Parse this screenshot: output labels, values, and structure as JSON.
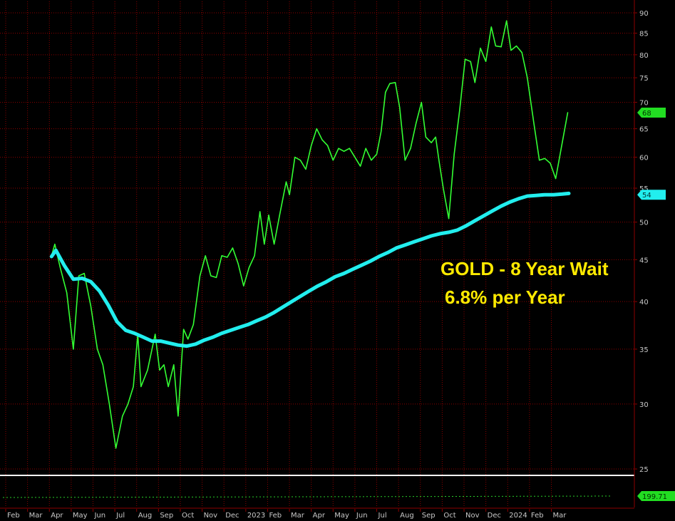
{
  "chart_data": {
    "type": "line",
    "title": "",
    "xlabel": "",
    "ylabel": "",
    "ylim": [
      25,
      92
    ],
    "y_scale": "log",
    "grid": true,
    "colors": {
      "background": "#000000",
      "grid": "#8b0000",
      "price": "#33ff33",
      "average": "#22eeee",
      "annotation": "#ffea00",
      "axis_text": "#c8c8c8"
    },
    "y_ticks": [
      "90",
      "85",
      "80",
      "75",
      "70",
      "65",
      "60",
      "55",
      "50",
      "45",
      "40",
      "35",
      "30",
      "25"
    ],
    "x_ticks": [
      "Feb",
      "Mar",
      "Apr",
      "May",
      "Jun",
      "Jul",
      "Aug",
      "Sep",
      "Oct",
      "Nov",
      "Dec",
      "2023",
      "Feb",
      "Mar",
      "Apr",
      "May",
      "Jun",
      "Jul",
      "Aug",
      "Sep",
      "Oct",
      "Nov",
      "Dec",
      "2024",
      "Feb",
      "Mar"
    ],
    "x_tick_month_index": [
      0,
      1,
      2,
      3,
      4,
      5,
      6,
      7,
      8,
      9,
      10,
      11,
      12,
      13,
      14,
      15,
      16,
      17,
      18,
      19,
      20,
      21,
      22,
      23,
      24,
      25
    ],
    "series": [
      {
        "role": "price",
        "values": [
          [
            2.1,
            45.5
          ],
          [
            2.25,
            47.0
          ],
          [
            2.5,
            44.0
          ],
          [
            2.8,
            41.0
          ],
          [
            3.1,
            35.0
          ],
          [
            3.35,
            43.0
          ],
          [
            3.6,
            43.3
          ],
          [
            3.9,
            39.5
          ],
          [
            4.2,
            35.0
          ],
          [
            4.45,
            33.5
          ],
          [
            4.75,
            30.0
          ],
          [
            5.05,
            26.5
          ],
          [
            5.35,
            29.0
          ],
          [
            5.6,
            30.0
          ],
          [
            5.85,
            31.5
          ],
          [
            6.05,
            36.5
          ],
          [
            6.2,
            31.5
          ],
          [
            6.5,
            33.0
          ],
          [
            6.85,
            36.5
          ],
          [
            7.05,
            33.0
          ],
          [
            7.25,
            33.5
          ],
          [
            7.45,
            31.5
          ],
          [
            7.7,
            33.5
          ],
          [
            7.9,
            29.0
          ],
          [
            8.15,
            37.0
          ],
          [
            8.35,
            36.0
          ],
          [
            8.6,
            37.5
          ],
          [
            8.9,
            43.0
          ],
          [
            9.15,
            45.5
          ],
          [
            9.4,
            43.0
          ],
          [
            9.65,
            42.8
          ],
          [
            9.9,
            45.5
          ],
          [
            10.15,
            45.3
          ],
          [
            10.4,
            46.5
          ],
          [
            10.65,
            44.5
          ],
          [
            10.9,
            41.8
          ],
          [
            11.15,
            44.0
          ],
          [
            11.4,
            45.5
          ],
          [
            11.65,
            51.5
          ],
          [
            11.85,
            47.0
          ],
          [
            12.05,
            51.0
          ],
          [
            12.3,
            47.0
          ],
          [
            12.55,
            51.0
          ],
          [
            12.85,
            56.0
          ],
          [
            13.0,
            54.0
          ],
          [
            13.25,
            60.0
          ],
          [
            13.5,
            59.5
          ],
          [
            13.75,
            58.0
          ],
          [
            14.0,
            62.0
          ],
          [
            14.25,
            65.0
          ],
          [
            14.5,
            63.0
          ],
          [
            14.75,
            62.0
          ],
          [
            15.0,
            59.5
          ],
          [
            15.25,
            61.5
          ],
          [
            15.5,
            61.0
          ],
          [
            15.75,
            61.5
          ],
          [
            16.0,
            60.0
          ],
          [
            16.25,
            58.5
          ],
          [
            16.5,
            61.5
          ],
          [
            16.75,
            59.5
          ],
          [
            17.0,
            60.5
          ],
          [
            17.2,
            64.5
          ],
          [
            17.4,
            72.0
          ],
          [
            17.6,
            73.8
          ],
          [
            17.85,
            74.0
          ],
          [
            18.05,
            69.0
          ],
          [
            18.3,
            59.5
          ],
          [
            18.55,
            61.5
          ],
          [
            18.8,
            66.0
          ],
          [
            19.05,
            70.0
          ],
          [
            19.25,
            63.5
          ],
          [
            19.5,
            62.5
          ],
          [
            19.7,
            63.5
          ],
          [
            19.85,
            59.5
          ],
          [
            20.05,
            55.0
          ],
          [
            20.3,
            50.5
          ],
          [
            20.55,
            60.5
          ],
          [
            20.8,
            68.5
          ],
          [
            21.05,
            79.0
          ],
          [
            21.3,
            78.5
          ],
          [
            21.5,
            74.0
          ],
          [
            21.75,
            81.5
          ],
          [
            22.0,
            78.5
          ],
          [
            22.25,
            86.5
          ],
          [
            22.45,
            82.0
          ],
          [
            22.7,
            81.8
          ],
          [
            22.95,
            88.0
          ],
          [
            23.15,
            81.0
          ],
          [
            23.4,
            82.0
          ],
          [
            23.65,
            80.5
          ],
          [
            23.9,
            75.0
          ],
          [
            24.2,
            66.0
          ],
          [
            24.45,
            59.5
          ],
          [
            24.7,
            59.8
          ],
          [
            24.95,
            59.0
          ],
          [
            25.2,
            56.5
          ],
          [
            25.5,
            62.5
          ],
          [
            25.75,
            68.0
          ]
        ]
      },
      {
        "role": "moving-average",
        "values": [
          [
            2.1,
            45.4
          ],
          [
            2.3,
            46.2
          ],
          [
            2.7,
            44.2
          ],
          [
            3.1,
            42.6
          ],
          [
            3.5,
            42.7
          ],
          [
            3.9,
            42.3
          ],
          [
            4.3,
            41.2
          ],
          [
            4.7,
            39.6
          ],
          [
            5.1,
            37.8
          ],
          [
            5.5,
            36.9
          ],
          [
            5.9,
            36.6
          ],
          [
            6.3,
            36.2
          ],
          [
            6.7,
            35.8
          ],
          [
            7.1,
            35.8
          ],
          [
            7.5,
            35.6
          ],
          [
            7.9,
            35.4
          ],
          [
            8.3,
            35.3
          ],
          [
            8.7,
            35.5
          ],
          [
            9.1,
            35.9
          ],
          [
            9.5,
            36.2
          ],
          [
            9.9,
            36.6
          ],
          [
            10.3,
            36.9
          ],
          [
            10.7,
            37.2
          ],
          [
            11.1,
            37.5
          ],
          [
            11.5,
            37.9
          ],
          [
            11.9,
            38.3
          ],
          [
            12.3,
            38.8
          ],
          [
            12.7,
            39.4
          ],
          [
            13.1,
            40.0
          ],
          [
            13.5,
            40.6
          ],
          [
            13.9,
            41.2
          ],
          [
            14.3,
            41.8
          ],
          [
            14.7,
            42.3
          ],
          [
            15.1,
            42.9
          ],
          [
            15.5,
            43.3
          ],
          [
            15.9,
            43.8
          ],
          [
            16.3,
            44.3
          ],
          [
            16.7,
            44.8
          ],
          [
            17.1,
            45.4
          ],
          [
            17.5,
            45.9
          ],
          [
            17.9,
            46.5
          ],
          [
            18.3,
            46.9
          ],
          [
            18.7,
            47.3
          ],
          [
            19.1,
            47.7
          ],
          [
            19.5,
            48.1
          ],
          [
            19.9,
            48.4
          ],
          [
            20.3,
            48.6
          ],
          [
            20.7,
            48.9
          ],
          [
            21.1,
            49.5
          ],
          [
            21.5,
            50.2
          ],
          [
            21.9,
            50.9
          ],
          [
            22.3,
            51.6
          ],
          [
            22.7,
            52.3
          ],
          [
            23.1,
            52.9
          ],
          [
            23.5,
            53.4
          ],
          [
            23.9,
            53.8
          ],
          [
            24.3,
            53.9
          ],
          [
            24.7,
            54.0
          ],
          [
            25.1,
            54.0
          ],
          [
            25.5,
            54.1
          ],
          [
            25.8,
            54.2
          ]
        ]
      }
    ],
    "last_value_badges": [
      {
        "label": "68",
        "value": 68,
        "color": "#22dd22",
        "text_color": "#003300"
      },
      {
        "label": "54",
        "value": 54,
        "color": "#22eeee",
        "text_color": "#003333"
      }
    ],
    "annotation": {
      "line1": "GOLD - 8 Year Wait",
      "line2": "6.8% per Year"
    },
    "lower_panel": {
      "badge_label": "199.71",
      "badge_color": "#22dd22"
    }
  }
}
